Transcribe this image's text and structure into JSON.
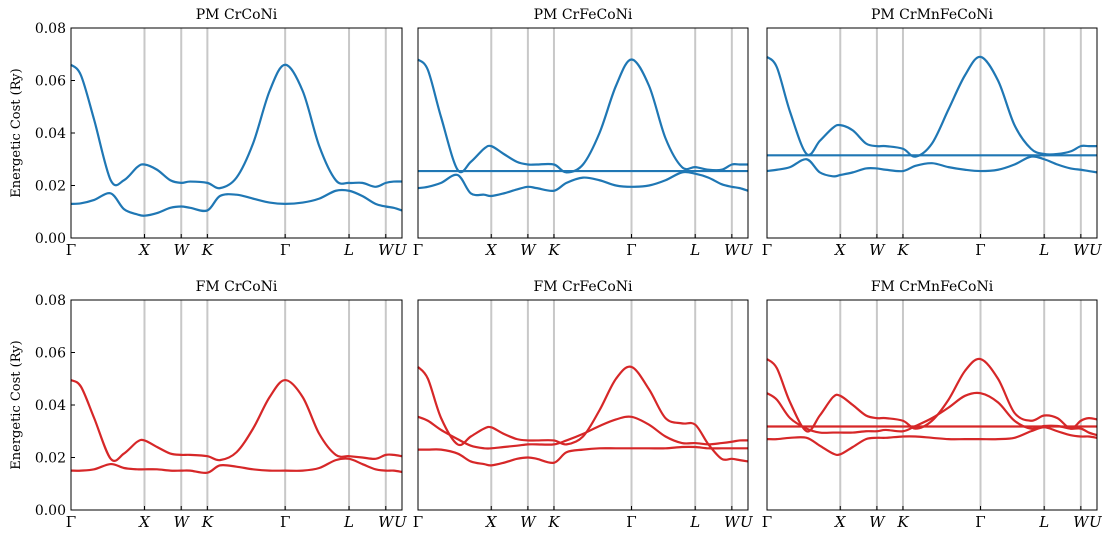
{
  "chart_data": [
    {
      "type": "line",
      "title": "PM CrCoNi",
      "color": "#1f77b4",
      "ylabel": "Energetic Cost (Ry)",
      "ylim": [
        0,
        0.08
      ],
      "yticks": [
        "0.00",
        "0.02",
        "0.04",
        "0.06",
        "0.08"
      ],
      "kpoints": [
        "Γ",
        "X",
        "W",
        "K",
        "Γ",
        "L",
        "W",
        "U"
      ],
      "kpos": [
        0,
        0.222,
        0.333,
        0.412,
        0.647,
        0.84,
        0.951,
        1.0
      ],
      "x": [
        0,
        0.03,
        0.07,
        0.12,
        0.16,
        0.2,
        0.222,
        0.26,
        0.3,
        0.333,
        0.36,
        0.412,
        0.45,
        0.5,
        0.55,
        0.6,
        0.647,
        0.7,
        0.75,
        0.8,
        0.84,
        0.88,
        0.92,
        0.951,
        0.975,
        1.0
      ],
      "series": [
        {
          "values": [
            0.066,
            0.062,
            0.045,
            0.022,
            0.022,
            0.027,
            0.028,
            0.026,
            0.022,
            0.021,
            0.0215,
            0.021,
            0.019,
            0.023,
            0.036,
            0.056,
            0.066,
            0.056,
            0.035,
            0.022,
            0.021,
            0.021,
            0.0195,
            0.021,
            0.0215,
            0.0215
          ]
        },
        {
          "values": [
            0.013,
            0.0132,
            0.0145,
            0.017,
            0.011,
            0.009,
            0.0085,
            0.0095,
            0.0115,
            0.012,
            0.0115,
            0.0105,
            0.016,
            0.0165,
            0.015,
            0.0135,
            0.013,
            0.0135,
            0.015,
            0.018,
            0.018,
            0.016,
            0.013,
            0.012,
            0.0115,
            0.0105
          ]
        }
      ]
    },
    {
      "type": "line",
      "title": "PM CrFeCoNi",
      "color": "#1f77b4",
      "ylim": [
        0,
        0.08
      ],
      "kpoints": [
        "Γ",
        "X",
        "W",
        "K",
        "Γ",
        "L",
        "W",
        "U"
      ],
      "kpos": [
        0,
        0.222,
        0.333,
        0.412,
        0.647,
        0.84,
        0.951,
        1.0
      ],
      "x": [
        0,
        0.03,
        0.07,
        0.12,
        0.16,
        0.2,
        0.222,
        0.26,
        0.3,
        0.333,
        0.36,
        0.412,
        0.45,
        0.5,
        0.55,
        0.6,
        0.647,
        0.7,
        0.75,
        0.8,
        0.84,
        0.88,
        0.92,
        0.951,
        0.975,
        1.0
      ],
      "series": [
        {
          "values": [
            0.068,
            0.064,
            0.046,
            0.026,
            0.029,
            0.034,
            0.035,
            0.032,
            0.029,
            0.028,
            0.028,
            0.028,
            0.025,
            0.028,
            0.04,
            0.058,
            0.068,
            0.058,
            0.038,
            0.027,
            0.027,
            0.026,
            0.026,
            0.028,
            0.028,
            0.028
          ]
        },
        {
          "values": [
            0.019,
            0.0195,
            0.021,
            0.024,
            0.017,
            0.0165,
            0.016,
            0.017,
            0.0185,
            0.0195,
            0.019,
            0.018,
            0.021,
            0.023,
            0.022,
            0.02,
            0.0195,
            0.02,
            0.022,
            0.025,
            0.0245,
            0.023,
            0.0205,
            0.0195,
            0.019,
            0.018
          ]
        },
        {
          "values": [
            0.0255,
            0.0255,
            0.0255,
            0.0255,
            0.0255,
            0.0255,
            0.0255,
            0.0255,
            0.0255,
            0.0255,
            0.0255,
            0.0255,
            0.0255,
            0.0255,
            0.0255,
            0.0255,
            0.0255,
            0.0255,
            0.0255,
            0.0255,
            0.0255,
            0.0255,
            0.0255,
            0.0255,
            0.0255,
            0.0255
          ]
        }
      ]
    },
    {
      "type": "line",
      "title": "PM CrMnFeCoNi",
      "color": "#1f77b4",
      "ylim": [
        0,
        0.08
      ],
      "kpoints": [
        "Γ",
        "X",
        "W",
        "K",
        "Γ",
        "L",
        "W",
        "U"
      ],
      "kpos": [
        0,
        0.222,
        0.333,
        0.412,
        0.647,
        0.84,
        0.951,
        1.0
      ],
      "x": [
        0,
        0.03,
        0.07,
        0.12,
        0.16,
        0.2,
        0.222,
        0.26,
        0.3,
        0.333,
        0.36,
        0.412,
        0.45,
        0.5,
        0.55,
        0.6,
        0.647,
        0.7,
        0.75,
        0.8,
        0.84,
        0.88,
        0.92,
        0.951,
        0.975,
        1.0
      ],
      "series": [
        {
          "values": [
            0.069,
            0.065,
            0.048,
            0.032,
            0.037,
            0.042,
            0.043,
            0.041,
            0.036,
            0.035,
            0.035,
            0.034,
            0.031,
            0.036,
            0.049,
            0.062,
            0.069,
            0.06,
            0.043,
            0.034,
            0.032,
            0.032,
            0.033,
            0.035,
            0.035,
            0.035
          ]
        },
        {
          "values": [
            0.0255,
            0.026,
            0.027,
            0.03,
            0.025,
            0.0235,
            0.024,
            0.025,
            0.0265,
            0.0265,
            0.026,
            0.0255,
            0.0275,
            0.0285,
            0.027,
            0.026,
            0.0255,
            0.026,
            0.028,
            0.031,
            0.03,
            0.028,
            0.0265,
            0.026,
            0.0255,
            0.025
          ]
        },
        {
          "values": [
            0.0315,
            0.0315,
            0.0315,
            0.0315,
            0.0315,
            0.0315,
            0.0315,
            0.0315,
            0.0315,
            0.0315,
            0.0315,
            0.0315,
            0.0315,
            0.0315,
            0.0315,
            0.0315,
            0.0315,
            0.0315,
            0.0315,
            0.0315,
            0.0315,
            0.0315,
            0.0315,
            0.0315,
            0.0315,
            0.0315
          ]
        }
      ]
    },
    {
      "type": "line",
      "title": "FM CrCoNi",
      "color": "#d62728",
      "ylabel": "Energetic Cost (Ry)",
      "ylim": [
        0,
        0.08
      ],
      "yticks": [
        "0.00",
        "0.02",
        "0.04",
        "0.06",
        "0.08"
      ],
      "kpoints": [
        "Γ",
        "X",
        "W",
        "K",
        "Γ",
        "L",
        "W",
        "U"
      ],
      "kpos": [
        0,
        0.222,
        0.333,
        0.412,
        0.647,
        0.84,
        0.951,
        1.0
      ],
      "x": [
        0,
        0.03,
        0.07,
        0.12,
        0.16,
        0.2,
        0.222,
        0.26,
        0.3,
        0.333,
        0.36,
        0.412,
        0.45,
        0.5,
        0.55,
        0.6,
        0.647,
        0.7,
        0.75,
        0.8,
        0.84,
        0.88,
        0.92,
        0.951,
        0.975,
        1.0
      ],
      "series": [
        {
          "values": [
            0.0495,
            0.047,
            0.035,
            0.0195,
            0.0215,
            0.026,
            0.0265,
            0.024,
            0.0215,
            0.021,
            0.021,
            0.0205,
            0.019,
            0.022,
            0.031,
            0.043,
            0.0495,
            0.043,
            0.029,
            0.021,
            0.0205,
            0.02,
            0.0195,
            0.021,
            0.021,
            0.0205
          ]
        },
        {
          "values": [
            0.015,
            0.015,
            0.0155,
            0.0175,
            0.016,
            0.0155,
            0.0155,
            0.0155,
            0.015,
            0.015,
            0.015,
            0.0142,
            0.017,
            0.0165,
            0.0155,
            0.015,
            0.015,
            0.015,
            0.016,
            0.019,
            0.0195,
            0.0175,
            0.0155,
            0.015,
            0.015,
            0.0145
          ]
        }
      ]
    },
    {
      "type": "line",
      "title": "FM CrFeCoNi",
      "color": "#d62728",
      "ylim": [
        0,
        0.08
      ],
      "kpoints": [
        "Γ",
        "X",
        "W",
        "K",
        "Γ",
        "L",
        "W",
        "U"
      ],
      "kpos": [
        0,
        0.222,
        0.333,
        0.412,
        0.647,
        0.84,
        0.951,
        1.0
      ],
      "x": [
        0,
        0.03,
        0.07,
        0.12,
        0.16,
        0.2,
        0.222,
        0.26,
        0.3,
        0.333,
        0.36,
        0.412,
        0.45,
        0.5,
        0.55,
        0.6,
        0.647,
        0.7,
        0.75,
        0.8,
        0.84,
        0.88,
        0.92,
        0.951,
        0.975,
        1.0
      ],
      "series": [
        {
          "values": [
            0.0545,
            0.05,
            0.035,
            0.025,
            0.028,
            0.031,
            0.0315,
            0.029,
            0.027,
            0.0265,
            0.0265,
            0.0265,
            0.025,
            0.028,
            0.038,
            0.05,
            0.0545,
            0.046,
            0.035,
            0.033,
            0.0325,
            0.025,
            0.0195,
            0.0195,
            0.019,
            0.0185
          ]
        },
        {
          "values": [
            0.0355,
            0.034,
            0.0305,
            0.027,
            0.0245,
            0.0235,
            0.0235,
            0.024,
            0.0245,
            0.025,
            0.025,
            0.025,
            0.0265,
            0.029,
            0.032,
            0.0345,
            0.0355,
            0.0325,
            0.028,
            0.0255,
            0.0255,
            0.025,
            0.0255,
            0.026,
            0.0265,
            0.0265
          ]
        },
        {
          "values": [
            0.023,
            0.023,
            0.023,
            0.0215,
            0.0185,
            0.0175,
            0.017,
            0.018,
            0.0195,
            0.02,
            0.0195,
            0.018,
            0.022,
            0.023,
            0.0235,
            0.0235,
            0.0235,
            0.0235,
            0.0235,
            0.024,
            0.024,
            0.0235,
            0.0235,
            0.0235,
            0.0235,
            0.0235
          ]
        }
      ]
    },
    {
      "type": "line",
      "title": "FM CrMnFeCoNi",
      "color": "#d62728",
      "ylim": [
        0,
        0.08
      ],
      "kpoints": [
        "Γ",
        "X",
        "W",
        "K",
        "Γ",
        "L",
        "W",
        "U"
      ],
      "kpos": [
        0,
        0.222,
        0.333,
        0.412,
        0.647,
        0.84,
        0.951,
        1.0
      ],
      "x": [
        0,
        0.03,
        0.07,
        0.12,
        0.16,
        0.2,
        0.222,
        0.26,
        0.3,
        0.333,
        0.36,
        0.412,
        0.45,
        0.5,
        0.55,
        0.6,
        0.647,
        0.7,
        0.75,
        0.8,
        0.84,
        0.88,
        0.92,
        0.951,
        0.975,
        1.0
      ],
      "series": [
        {
          "values": [
            0.0575,
            0.054,
            0.041,
            0.03,
            0.036,
            0.043,
            0.0435,
            0.04,
            0.036,
            0.035,
            0.035,
            0.034,
            0.031,
            0.034,
            0.042,
            0.053,
            0.0575,
            0.05,
            0.037,
            0.034,
            0.036,
            0.035,
            0.031,
            0.034,
            0.035,
            0.0345
          ]
        },
        {
          "values": [
            0.0445,
            0.042,
            0.035,
            0.031,
            0.0295,
            0.0295,
            0.0295,
            0.0295,
            0.03,
            0.03,
            0.0305,
            0.03,
            0.032,
            0.035,
            0.039,
            0.0435,
            0.0445,
            0.041,
            0.034,
            0.031,
            0.032,
            0.032,
            0.031,
            0.031,
            0.0295,
            0.0285
          ]
        },
        {
          "values": [
            0.027,
            0.027,
            0.0275,
            0.0275,
            0.0245,
            0.0215,
            0.0212,
            0.024,
            0.027,
            0.0275,
            0.0275,
            0.028,
            0.028,
            0.0275,
            0.027,
            0.027,
            0.027,
            0.027,
            0.0275,
            0.03,
            0.0315,
            0.03,
            0.0285,
            0.028,
            0.028,
            0.0275
          ]
        },
        {
          "values": [
            0.0318,
            0.0318,
            0.0318,
            0.0318,
            0.0318,
            0.0318,
            0.0318,
            0.0318,
            0.0318,
            0.0318,
            0.0318,
            0.0318,
            0.0318,
            0.0318,
            0.0318,
            0.0318,
            0.0318,
            0.0318,
            0.0318,
            0.0318,
            0.0318,
            0.0318,
            0.0318,
            0.0318,
            0.0318,
            0.0318
          ]
        }
      ]
    }
  ]
}
